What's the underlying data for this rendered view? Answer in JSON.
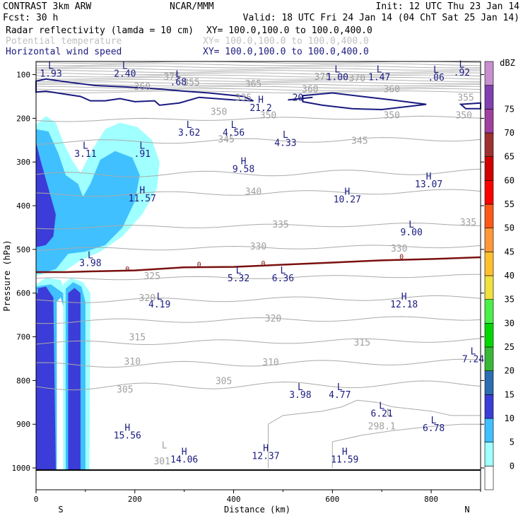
{
  "header": {
    "title": "CONTRAST  3km ARW",
    "center": "NCAR/MMM",
    "init": "Init: 12 UTC Thu 23 Jan 14",
    "fcst": "Fcst:   30 h",
    "valid": "Valid: 18 UTC Fri 24 Jan 14 (04 ChT Sat 25 Jan 14)",
    "fields": [
      {
        "name": "Radar reflectivity (lamda = 10 cm)",
        "xy": "XY= 100.0,100.0 to 100.0,400.0",
        "color": "#000000"
      },
      {
        "name": "Potential temperature",
        "xy": "XY= 100.0,100.0 to 100.0,400.0",
        "color": "#c0c0c0"
      },
      {
        "name": "Horizontal wind speed",
        "xy": "XY= 100.0,100.0 to 100.0,400.0",
        "color": "#1a1a80"
      }
    ]
  },
  "chart_data": {
    "type": "heatmap",
    "xlabel": "Distance (km)",
    "ylabel": "Pressure (hPa)",
    "xlim": [
      0,
      900
    ],
    "ylim": [
      1050,
      70
    ],
    "x_ticks": [
      "0",
      "200",
      "400",
      "600",
      "800"
    ],
    "x_tick_values": [
      0,
      200,
      400,
      600,
      800
    ],
    "y_ticks": [
      "100",
      "200",
      "300",
      "400",
      "500",
      "600",
      "700",
      "800",
      "900",
      "1000"
    ],
    "y_tick_values": [
      100,
      200,
      300,
      400,
      500,
      600,
      700,
      800,
      900,
      1000
    ],
    "x_ends": {
      "left": "S",
      "right": "N"
    },
    "colorbar": {
      "unit": "dBZ",
      "levels": [
        "0",
        "5",
        "10",
        "15",
        "20",
        "25",
        "30",
        "35",
        "40",
        "45",
        "50",
        "55",
        "60",
        "65",
        "70",
        "75"
      ],
      "colors": [
        "#ffffff",
        "#a0ffff",
        "#40c0ff",
        "#3c3cd8",
        "#2c6eb0",
        "#38b838",
        "#00d800",
        "#48f048",
        "#f0e040",
        "#ffc030",
        "#ff9838",
        "#ff5818",
        "#ff0000",
        "#d00000",
        "#a03030",
        "#a040a0",
        "#8040b0",
        "#c890d0"
      ]
    },
    "theta_contours": {
      "color": "#aaaaaa",
      "labels": [
        {
          "text": "375",
          "x": 275,
          "p": 112
        },
        {
          "text": "375",
          "x": 580,
          "p": 112
        },
        {
          "text": "370",
          "x": 650,
          "p": 115
        },
        {
          "text": "365",
          "x": 440,
          "p": 128
        },
        {
          "text": "360",
          "x": 555,
          "p": 140
        },
        {
          "text": "360",
          "x": 720,
          "p": 140
        },
        {
          "text": "360",
          "x": 215,
          "p": 135
        },
        {
          "text": "355",
          "x": 315,
          "p": 125
        },
        {
          "text": "355",
          "x": 870,
          "p": 160
        },
        {
          "text": "335",
          "x": 420,
          "p": 160
        },
        {
          "text": "350",
          "x": 370,
          "p": 192
        },
        {
          "text": "350",
          "x": 470,
          "p": 200
        },
        {
          "text": "350",
          "x": 720,
          "p": 200
        },
        {
          "text": "350",
          "x": 866,
          "p": 200
        },
        {
          "text": "345",
          "x": 385,
          "p": 255
        },
        {
          "text": "345",
          "x": 655,
          "p": 258
        },
        {
          "text": "340",
          "x": 440,
          "p": 375
        },
        {
          "text": "335",
          "x": 495,
          "p": 450
        },
        {
          "text": "335",
          "x": 875,
          "p": 445
        },
        {
          "text": "330",
          "x": 450,
          "p": 500
        },
        {
          "text": "330",
          "x": 735,
          "p": 505
        },
        {
          "text": "325",
          "x": 235,
          "p": 568
        },
        {
          "text": "320",
          "x": 225,
          "p": 618
        },
        {
          "text": "320",
          "x": 480,
          "p": 665
        },
        {
          "text": "315",
          "x": 205,
          "p": 708
        },
        {
          "text": "315",
          "x": 660,
          "p": 720
        },
        {
          "text": "310",
          "x": 195,
          "p": 764
        },
        {
          "text": "310",
          "x": 475,
          "p": 765
        },
        {
          "text": "305",
          "x": 180,
          "p": 828
        },
        {
          "text": "305",
          "x": 380,
          "p": 808
        },
        {
          "text": "301",
          "x": 255,
          "p": 992
        },
        {
          "text": "298.1",
          "x": 700,
          "p": 912
        }
      ],
      "extrema": [
        {
          "text": "L",
          "x": 260,
          "p": 955
        },
        {
          "text": "L",
          "x": 715,
          "p": 880
        }
      ]
    },
    "wind_contours": {
      "color": "#1a1a80",
      "labels": [
        {
          "text": "20",
          "x": 530,
          "p": 160
        },
        {
          "text": "0",
          "x": 185,
          "p": 550
        },
        {
          "text": "0",
          "x": 330,
          "p": 540
        },
        {
          "text": "0",
          "x": 460,
          "p": 537
        },
        {
          "text": "0",
          "x": 740,
          "p": 522
        }
      ],
      "extrema": [
        {
          "text": "L",
          "x": 30,
          "p": 87,
          "value": "1.93"
        },
        {
          "text": "L",
          "x": 180,
          "p": 87,
          "value": "2.40"
        },
        {
          "text": "L",
          "x": 288,
          "p": 106,
          "value": ".68"
        },
        {
          "text": "L",
          "x": 610,
          "p": 95,
          "value": "1.00"
        },
        {
          "text": "L",
          "x": 695,
          "p": 95,
          "value": "1.47"
        },
        {
          "text": "L",
          "x": 810,
          "p": 96,
          "value": ".06"
        },
        {
          "text": "L",
          "x": 862,
          "p": 84,
          "value": ".92"
        },
        {
          "text": "H",
          "x": 455,
          "p": 165,
          "value": "21.2"
        },
        {
          "text": "L",
          "x": 310,
          "p": 222,
          "value": "3.62"
        },
        {
          "text": "L",
          "x": 400,
          "p": 222,
          "value": "4.56"
        },
        {
          "text": "L",
          "x": 505,
          "p": 245,
          "value": "4.33"
        },
        {
          "text": "L",
          "x": 100,
          "p": 270,
          "value": "3.11"
        },
        {
          "text": "L",
          "x": 215,
          "p": 270,
          "value": ".91"
        },
        {
          "text": "H",
          "x": 420,
          "p": 305,
          "value": "9.58"
        },
        {
          "text": "H",
          "x": 215,
          "p": 372,
          "value": "11.57"
        },
        {
          "text": "H",
          "x": 630,
          "p": 375,
          "value": "10.27"
        },
        {
          "text": "H",
          "x": 795,
          "p": 340,
          "value": "13.07"
        },
        {
          "text": "L",
          "x": 760,
          "p": 450,
          "value": "9.00"
        },
        {
          "text": "L",
          "x": 110,
          "p": 520,
          "value": "3.98"
        },
        {
          "text": "L",
          "x": 410,
          "p": 555,
          "value": "5.32"
        },
        {
          "text": "L",
          "x": 500,
          "p": 555,
          "value": "6.36"
        },
        {
          "text": "L",
          "x": 250,
          "p": 615,
          "value": "4.19"
        },
        {
          "text": "H",
          "x": 745,
          "p": 615,
          "value": "12.18"
        },
        {
          "text": "L",
          "x": 885,
          "p": 740,
          "value": "7.24"
        },
        {
          "text": "L",
          "x": 535,
          "p": 822,
          "value": "3.98"
        },
        {
          "text": "L",
          "x": 615,
          "p": 822,
          "value": "4.77"
        },
        {
          "text": "L",
          "x": 700,
          "p": 865,
          "value": "6.21"
        },
        {
          "text": "L",
          "x": 805,
          "p": 898,
          "value": "6.78"
        },
        {
          "text": "H",
          "x": 185,
          "p": 915,
          "value": "15.56"
        },
        {
          "text": "H",
          "x": 300,
          "p": 970,
          "value": "14.06"
        },
        {
          "text": "H",
          "x": 465,
          "p": 962,
          "value": "12.37"
        },
        {
          "text": "H",
          "x": 625,
          "p": 970,
          "value": "11.59"
        }
      ]
    }
  }
}
